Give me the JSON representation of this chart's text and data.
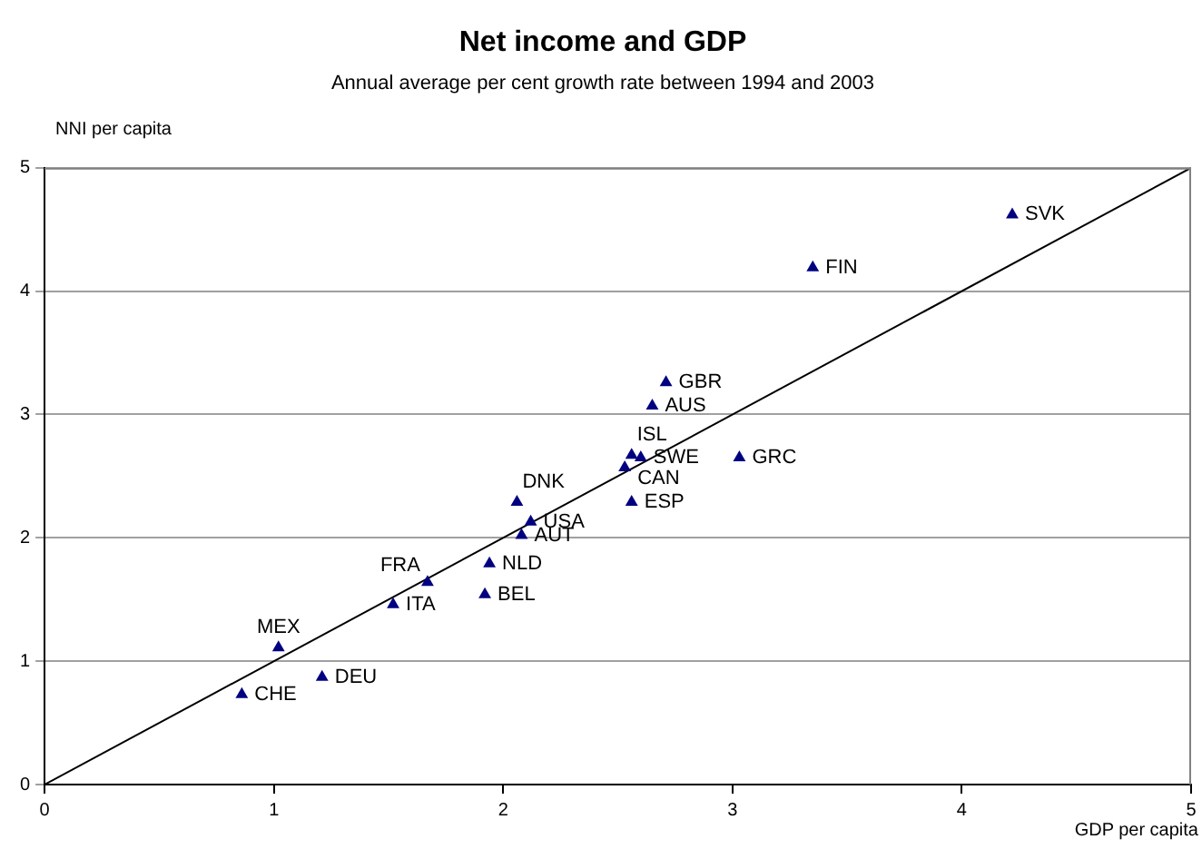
{
  "chart_data": {
    "type": "scatter",
    "title": "Net income and GDP",
    "subtitle": "Annual average per cent growth rate between 1994 and 2003",
    "xlabel": "GDP per capita",
    "ylabel": "NNI per capita",
    "xlim": [
      0,
      5
    ],
    "xticks": [
      0,
      1,
      2,
      3,
      4,
      5
    ],
    "ylim": [
      0,
      5
    ],
    "yticks": [
      0,
      1,
      2,
      3,
      4,
      5
    ],
    "grid": "y",
    "legend": false,
    "marker": "triangle",
    "series": [
      {
        "type": "scatter",
        "color": "#000080",
        "x": [
          0.86,
          1.21,
          1.02,
          1.52,
          1.67,
          1.92,
          1.94,
          2.08,
          2.12,
          2.06,
          2.56,
          2.53,
          2.56,
          2.6,
          3.03,
          2.65,
          2.71,
          3.35,
          4.22
        ],
        "values": [
          0.73,
          0.87,
          1.11,
          1.46,
          1.64,
          1.54,
          1.79,
          2.02,
          2.13,
          2.29,
          2.29,
          2.57,
          2.67,
          2.65,
          2.65,
          3.07,
          3.26,
          4.19,
          4.62
        ]
      },
      {
        "type": "line",
        "color": "#000000",
        "marker": "none",
        "x": [
          0,
          5
        ],
        "values": [
          0,
          5
        ]
      }
    ],
    "annotations": [
      {
        "text": "CHE",
        "x": 0.86,
        "y": 0.73
      },
      {
        "text": "DEU",
        "x": 1.21,
        "y": 0.87
      },
      {
        "text": "MEX",
        "x": 1.02,
        "y": 1.11
      },
      {
        "text": "ITA",
        "x": 1.52,
        "y": 1.46
      },
      {
        "text": "FRA",
        "x": 1.67,
        "y": 1.64
      },
      {
        "text": "BEL",
        "x": 1.92,
        "y": 1.54
      },
      {
        "text": "NLD",
        "x": 1.94,
        "y": 1.79
      },
      {
        "text": "AUT",
        "x": 2.08,
        "y": 2.02
      },
      {
        "text": "USA",
        "x": 2.12,
        "y": 2.13
      },
      {
        "text": "DNK",
        "x": 2.06,
        "y": 2.29
      },
      {
        "text": "ESP",
        "x": 2.56,
        "y": 2.29
      },
      {
        "text": "CAN",
        "x": 2.53,
        "y": 2.57
      },
      {
        "text": "ISL",
        "x": 2.56,
        "y": 2.67
      },
      {
        "text": "SWE",
        "x": 2.6,
        "y": 2.65
      },
      {
        "text": "GRC",
        "x": 3.03,
        "y": 2.65
      },
      {
        "text": "AUS",
        "x": 2.65,
        "y": 3.07
      },
      {
        "text": "GBR",
        "x": 2.71,
        "y": 3.26
      },
      {
        "text": "FIN",
        "x": 3.35,
        "y": 4.19
      },
      {
        "text": "SVK",
        "x": 4.22,
        "y": 4.62
      }
    ]
  }
}
